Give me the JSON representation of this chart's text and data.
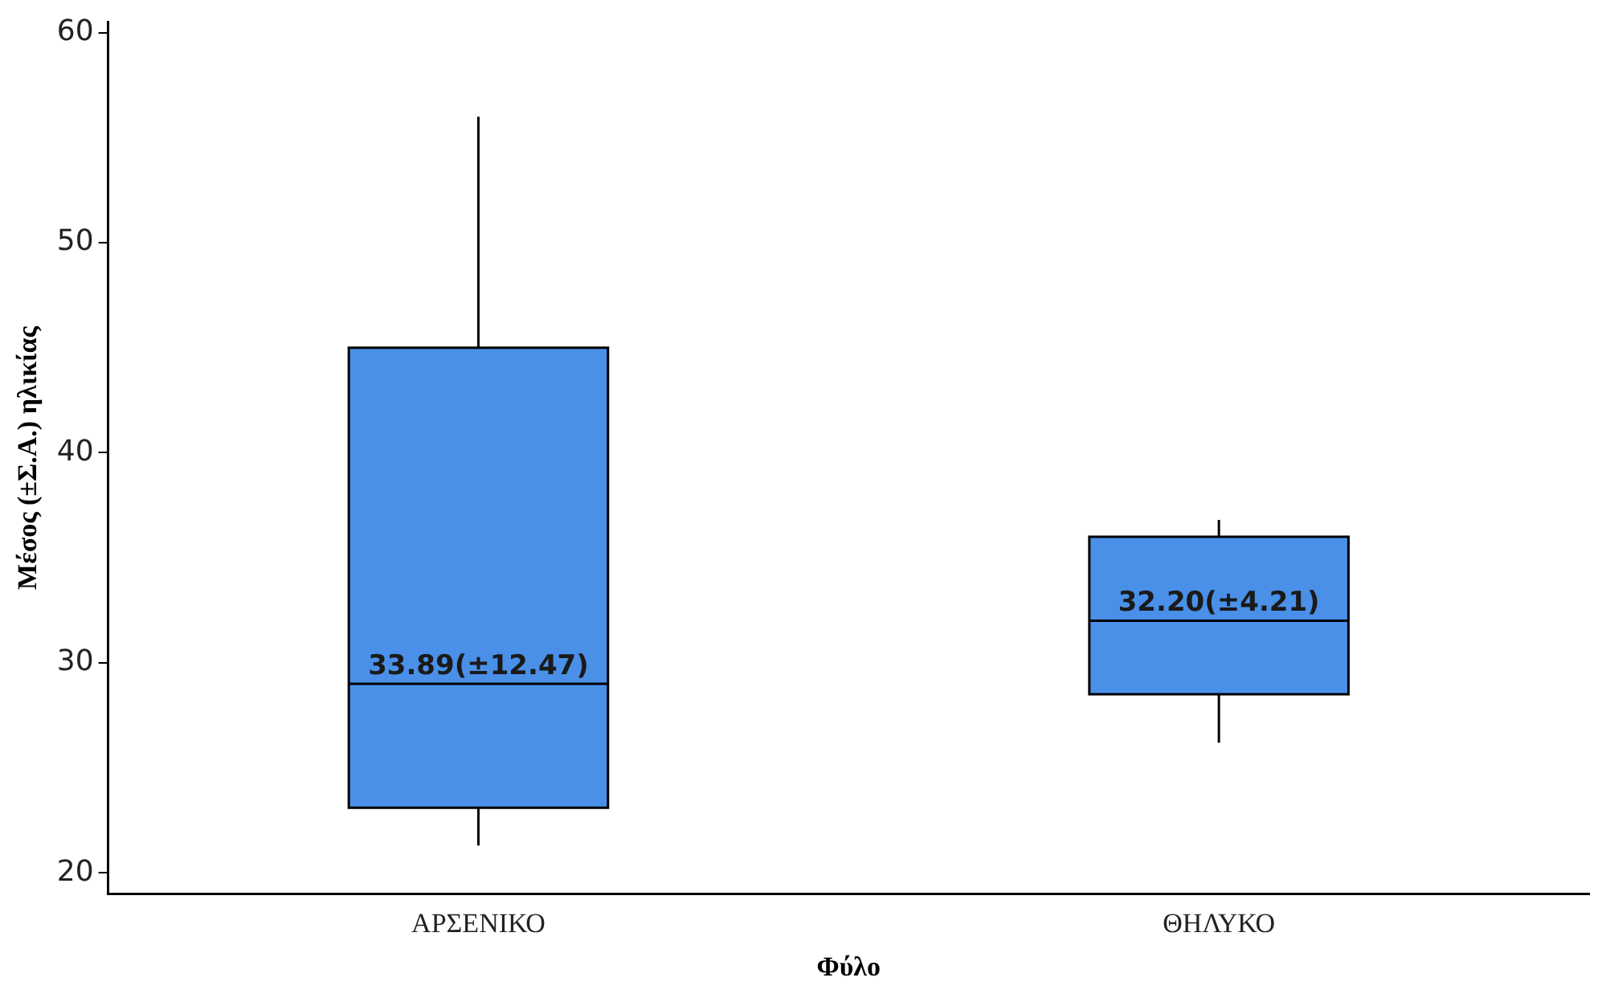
{
  "chart_data": {
    "type": "box",
    "xlabel": "Φύλο",
    "ylabel": "Μέσος (±Σ.Α.) ηλικίας",
    "categories": [
      "ΑΡΣΕΝΙΚΟ",
      "ΘΗΛΥΚΟ"
    ],
    "boxes": [
      {
        "low": 21.3,
        "q1": 23.1,
        "median": 29,
        "q3": 45,
        "high": 56
      },
      {
        "low": 26.2,
        "q1": 28.5,
        "median": 32,
        "q3": 36,
        "high": 36.8
      }
    ],
    "color": "#4a90e8",
    "ylim": [
      19,
      60.5
    ],
    "yticks": [
      20,
      30,
      40,
      50,
      60
    ],
    "grid": false,
    "legend": false,
    "annotations": [
      {
        "text": "33.89(±12.47)",
        "x": "ΑΡΣΕΝΙΚΟ",
        "y": 29
      },
      {
        "text": "32.20(±4.21)",
        "x": "ΘΗΛΥΚΟ",
        "y": 32
      }
    ]
  }
}
